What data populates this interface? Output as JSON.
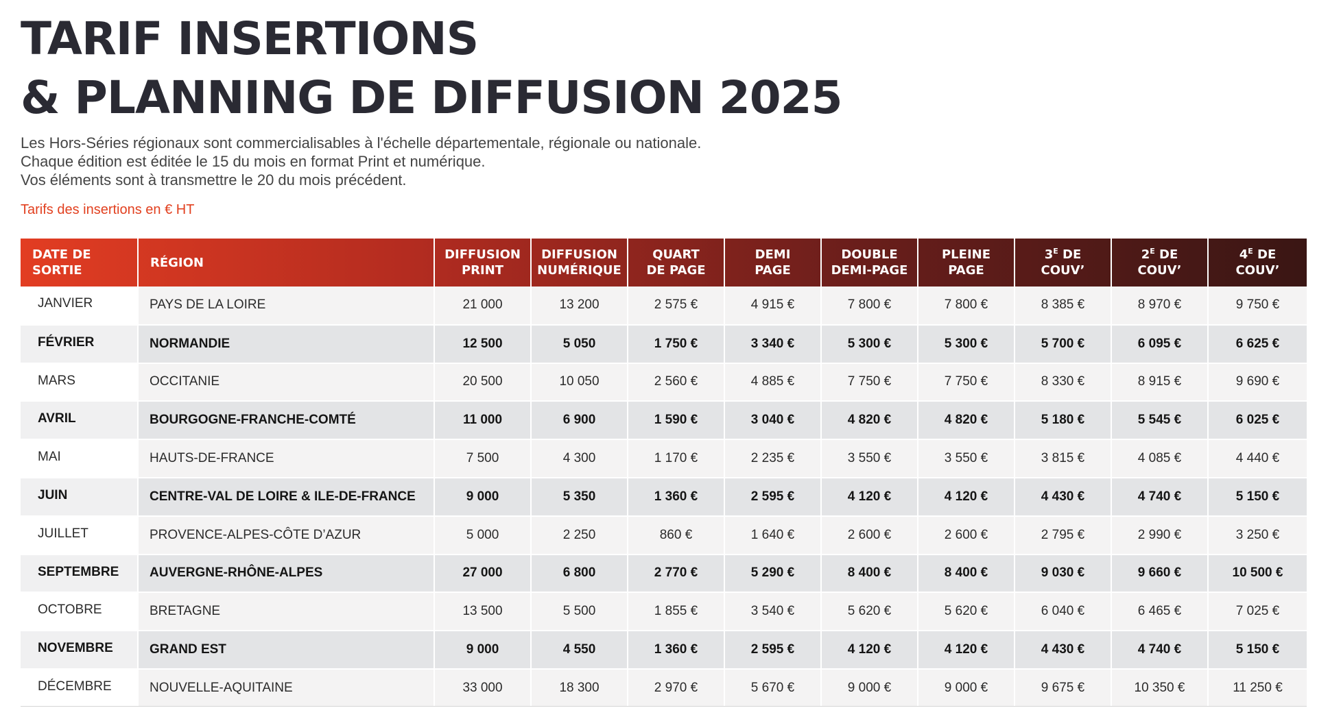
{
  "title": {
    "line1": "TARIF INSERTIONS",
    "line2": "& PLANNING DE DIFFUSION 2025"
  },
  "intro": {
    "line1": "Les Hors-Séries régionaux sont commercialisables à l'échelle départementale, régionale ou nationale.",
    "line2": "Chaque édition est éditée le 15 du mois en format Print et numérique.",
    "line3": "Vos éléments sont à transmettre le 20 du mois précédent."
  },
  "note": "Tarifs des insertions en € HT",
  "colors": {
    "title": "#2a2a33",
    "accent": "#e2401f",
    "header_start": "#e23d22",
    "header_end": "#3a1614"
  },
  "header": {
    "date_l1": "DATE DE",
    "date_l2": "SORTIE",
    "region": "RÉGION",
    "print_l1": "DIFFUSION",
    "print_l2": "PRINT",
    "numerique_l1": "DIFFUSION",
    "numerique_l2": "NUMÉRIQUE",
    "quart_l1": "QUART",
    "quart_l2": "DE PAGE",
    "demi_l1": "DEMI",
    "demi_l2": "PAGE",
    "double_l1": "DOUBLE",
    "double_l2": "DEMI-PAGE",
    "pleine_l1": "PLEINE",
    "pleine_l2": "PAGE",
    "couv3_num": "3",
    "couv3_sup": "E",
    "couv3_de": " DE",
    "couv3_l2": "COUV’",
    "couv2_num": "2",
    "couv2_sup": "E",
    "couv2_de": " DE",
    "couv2_l2": "COUV’",
    "couv4_num": "4",
    "couv4_sup": "E",
    "couv4_de": " DE",
    "couv4_l2": "COUV’"
  },
  "rows": [
    {
      "month": "JANVIER",
      "region": "PAYS DE LA LOIRE",
      "print": "21 000",
      "numerique": "13 200",
      "quart": "2 575 €",
      "demi": "4 915 €",
      "double": "7 800 €",
      "pleine": "7 800 €",
      "couv3": "8 385 €",
      "couv2": "8 970 €",
      "couv4": "9 750 €"
    },
    {
      "month": "FÉVRIER",
      "region": "NORMANDIE",
      "print": "12 500",
      "numerique": "5 050",
      "quart": "1 750 €",
      "demi": "3 340 €",
      "double": "5 300 €",
      "pleine": "5 300 €",
      "couv3": "5 700 €",
      "couv2": "6 095 €",
      "couv4": "6 625 €"
    },
    {
      "month": "MARS",
      "region": "OCCITANIE",
      "print": "20 500",
      "numerique": "10 050",
      "quart": "2 560 €",
      "demi": "4 885 €",
      "double": "7 750 €",
      "pleine": "7 750 €",
      "couv3": "8 330 €",
      "couv2": "8 915 €",
      "couv4": "9 690 €"
    },
    {
      "month": "AVRIL",
      "region": "BOURGOGNE-FRANCHE-COMTÉ",
      "print": "11 000",
      "numerique": "6 900",
      "quart": "1 590 €",
      "demi": "3 040 €",
      "double": "4 820 €",
      "pleine": "4 820 €",
      "couv3": "5 180 €",
      "couv2": "5 545 €",
      "couv4": "6 025 €"
    },
    {
      "month": "MAI",
      "region": "HAUTS-DE-FRANCE",
      "print": "7 500",
      "numerique": "4 300",
      "quart": "1 170 €",
      "demi": "2 235 €",
      "double": "3 550 €",
      "pleine": "3 550 €",
      "couv3": "3 815 €",
      "couv2": "4 085 €",
      "couv4": "4 440 €"
    },
    {
      "month": "JUIN",
      "region": "CENTRE-VAL DE LOIRE & ILE-DE-FRANCE",
      "print": "9 000",
      "numerique": "5 350",
      "quart": "1 360 €",
      "demi": "2 595 €",
      "double": "4 120 €",
      "pleine": "4 120 €",
      "couv3": "4 430 €",
      "couv2": "4 740 €",
      "couv4": "5 150 €"
    },
    {
      "month": "JUILLET",
      "region": "PROVENCE-ALPES-CÔTE D’AZUR",
      "print": "5 000",
      "numerique": "2 250",
      "quart": "860 €",
      "demi": "1 640 €",
      "double": "2 600 €",
      "pleine": "2 600 €",
      "couv3": "2 795 €",
      "couv2": "2 990 €",
      "couv4": "3 250 €"
    },
    {
      "month": "SEPTEMBRE",
      "region": "AUVERGNE-RHÔNE-ALPES",
      "print": "27 000",
      "numerique": "6 800",
      "quart": "2 770 €",
      "demi": "5 290 €",
      "double": "8 400 €",
      "pleine": "8 400 €",
      "couv3": "9 030 €",
      "couv2": "9 660 €",
      "couv4": "10 500 €"
    },
    {
      "month": "OCTOBRE",
      "region": "BRETAGNE",
      "print": "13 500",
      "numerique": "5 500",
      "quart": "1 855 €",
      "demi": "3 540 €",
      "double": "5 620 €",
      "pleine": "5 620 €",
      "couv3": "6 040 €",
      "couv2": "6 465 €",
      "couv4": "7 025 €"
    },
    {
      "month": "NOVEMBRE",
      "region": "GRAND EST",
      "print": "9 000",
      "numerique": "4 550",
      "quart": "1 360 €",
      "demi": "2 595 €",
      "double": "4 120 €",
      "pleine": "4 120 €",
      "couv3": "4 430 €",
      "couv2": "4 740 €",
      "couv4": "5 150 €"
    },
    {
      "month": "DÉCEMBRE",
      "region": "NOUVELLE-AQUITAINE",
      "print": "33 000",
      "numerique": "18 300",
      "quart": "2 970 €",
      "demi": "5 670 €",
      "double": "9 000 €",
      "pleine": "9 000 €",
      "couv3": "9 675 €",
      "couv2": "10 350 €",
      "couv4": "11 250 €"
    }
  ]
}
